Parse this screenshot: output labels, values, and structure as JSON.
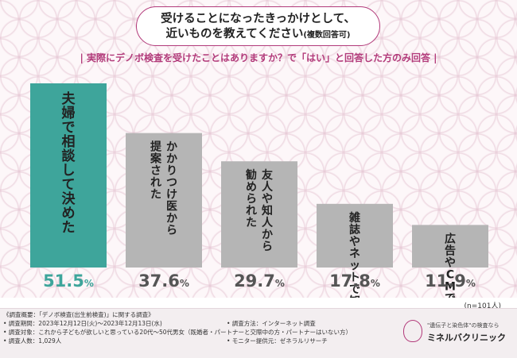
{
  "title": {
    "line1": "受けることになったきっかけとして、",
    "line2_main": "近いものを教えてください",
    "line2_note": "(複数回答可)"
  },
  "subtitle": "| 実際にデノボ検査を受けたことはありますか？で「はい」と回答した方のみ回答 |",
  "sample_note": "(n=101人)",
  "colors": {
    "accent": "#b23a7a",
    "highlight_bar": "#3ea59b",
    "bar": "#b5b5b5",
    "highlight_value": "#3ea59b",
    "value": "#555555"
  },
  "chart_data": {
    "type": "bar",
    "title": "受けることになったきっかけとして、近いものを教えてください(複数回答可)",
    "categories": [
      "夫婦で相談して決めた",
      "かかりつけ医から提案された",
      "友人や知人から勧められた",
      "雑誌やネットで知った",
      "広告やCMで知った"
    ],
    "label_lines": [
      [
        "夫婦で相談して決めた"
      ],
      [
        "かかりつけ医から",
        "提案された"
      ],
      [
        "友人や知人から",
        "勧められた"
      ],
      [
        "雑誌やネットで知った"
      ],
      [
        "広告やCMで知った"
      ]
    ],
    "values": [
      51.5,
      37.6,
      29.7,
      17.8,
      11.9
    ],
    "value_labels": [
      {
        "num": "51.5",
        "unit": "%"
      },
      {
        "num": "37.6",
        "unit": "%"
      },
      {
        "num": "29.7",
        "unit": "%"
      },
      {
        "num": "17.8",
        "unit": "%"
      },
      {
        "num": "11.9",
        "unit": "%"
      }
    ],
    "highlight_index": 0,
    "ylim": [
      0,
      51.5
    ],
    "grid": false,
    "legend": "none"
  },
  "footer": {
    "overview": "《調査概要：「デノボ検査(出生前検査)」に関する調査》",
    "period": "• 調査期間：2023年12月12日(火)～2023年12月13日(水)",
    "target": "• 調査対象：これから子どもが欲しいと思っている20代～50代男女（既婚者・パートナーと交際中の方・パートナーはいない方）",
    "count": "• 調査人数：1,029人",
    "method": "• 調査方法：インターネット調査",
    "provider": "• モニター提供元：ゼネラルリサーチ",
    "logo_sub": "\"遺伝子と染色体\"の検査なら",
    "logo_name": "ミネルバクリニック"
  }
}
